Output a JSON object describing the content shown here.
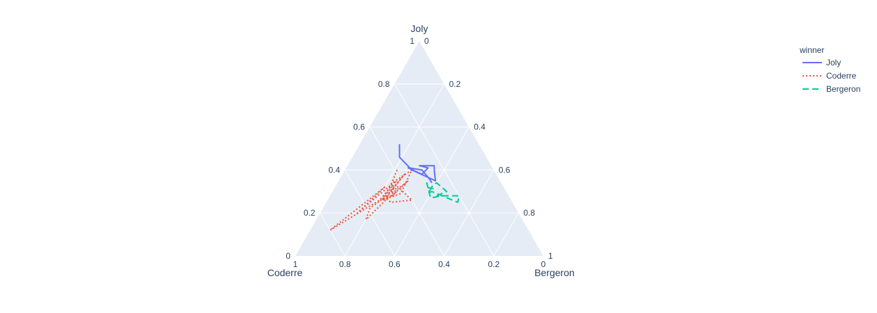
{
  "chart_data": {
    "type": "ternary-line",
    "axes": {
      "a": {
        "title": "Joly",
        "ticks": [
          "1",
          "0.8",
          "0.6",
          "0.4",
          "0.2",
          "0"
        ]
      },
      "b": {
        "title": "Coderre",
        "ticks": [
          "1",
          "0.8",
          "0.6",
          "0.4",
          "0.2",
          "0"
        ]
      },
      "c": {
        "title": "Bergeron",
        "ticks": [
          "1",
          "0.8",
          "0.6",
          "0.4",
          "0.2",
          "0"
        ]
      }
    },
    "grid": true,
    "legend": {
      "title": "winner",
      "position": "top-right"
    },
    "series": [
      {
        "name": "Joly",
        "color": "#636efa",
        "dash": "solid",
        "points": [
          [
            0.52,
            0.32,
            0.16
          ],
          [
            0.46,
            0.35,
            0.19
          ],
          [
            0.4,
            0.33,
            0.27
          ],
          [
            0.35,
            0.26,
            0.39
          ],
          [
            0.4,
            0.24,
            0.36
          ],
          [
            0.42,
            0.23,
            0.35
          ],
          [
            0.42,
            0.29,
            0.29
          ],
          [
            0.41,
            0.26,
            0.33
          ],
          [
            0.38,
            0.3,
            0.32
          ],
          [
            0.41,
            0.34,
            0.25
          ],
          [
            0.4,
            0.29,
            0.31
          ],
          [
            0.36,
            0.28,
            0.36
          ],
          [
            0.34,
            0.28,
            0.38
          ]
        ]
      },
      {
        "name": "Coderre",
        "color": "#ef553b",
        "dash": "dot",
        "points": [
          [
            0.4,
            0.39,
            0.21
          ],
          [
            0.33,
            0.45,
            0.22
          ],
          [
            0.2,
            0.65,
            0.15
          ],
          [
            0.32,
            0.48,
            0.2
          ],
          [
            0.12,
            0.8,
            0.08
          ],
          [
            0.26,
            0.53,
            0.21
          ],
          [
            0.35,
            0.42,
            0.23
          ],
          [
            0.29,
            0.45,
            0.26
          ],
          [
            0.26,
            0.52,
            0.22
          ],
          [
            0.34,
            0.44,
            0.22
          ],
          [
            0.4,
            0.33,
            0.27
          ],
          [
            0.29,
            0.43,
            0.28
          ],
          [
            0.26,
            0.52,
            0.22
          ],
          [
            0.33,
            0.44,
            0.23
          ],
          [
            0.28,
            0.47,
            0.25
          ],
          [
            0.35,
            0.37,
            0.28
          ],
          [
            0.3,
            0.45,
            0.25
          ],
          [
            0.17,
            0.63,
            0.2
          ],
          [
            0.22,
            0.59,
            0.19
          ],
          [
            0.3,
            0.46,
            0.24
          ],
          [
            0.33,
            0.43,
            0.24
          ],
          [
            0.26,
            0.4,
            0.34
          ],
          [
            0.25,
            0.49,
            0.26
          ],
          [
            0.27,
            0.5,
            0.23
          ],
          [
            0.38,
            0.37,
            0.25
          ],
          [
            0.29,
            0.48,
            0.23
          ],
          [
            0.26,
            0.5,
            0.24
          ]
        ]
      },
      {
        "name": "Bergeron",
        "color": "#00cc96",
        "dash": "dash",
        "points": [
          [
            0.28,
            0.29,
            0.43
          ],
          [
            0.3,
            0.24,
            0.46
          ],
          [
            0.34,
            0.26,
            0.4
          ],
          [
            0.33,
            0.28,
            0.39
          ],
          [
            0.29,
            0.32,
            0.39
          ],
          [
            0.3,
            0.3,
            0.4
          ],
          [
            0.25,
            0.22,
            0.53
          ],
          [
            0.28,
            0.2,
            0.52
          ],
          [
            0.28,
            0.27,
            0.45
          ],
          [
            0.27,
            0.32,
            0.41
          ],
          [
            0.34,
            0.3,
            0.36
          ],
          [
            0.32,
            0.31,
            0.37
          ],
          [
            0.31,
            0.28,
            0.41
          ]
        ]
      }
    ]
  }
}
